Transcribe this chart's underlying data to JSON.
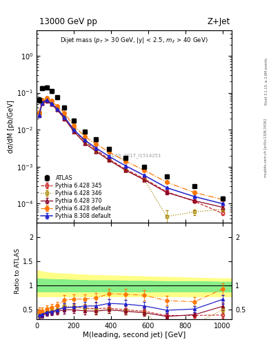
{
  "title_left": "13000 GeV pp",
  "title_right": "Z+Jet",
  "annotation": "Dijet mass ($p_T$ > 30 GeV, |y| < 2.5, $m_{ll}$ > 40 GeV)",
  "xlabel": "M(leading, second jet) [GeV]",
  "ylabel_main": "dσ/dM [pb/GeV]",
  "ylabel_ratio": "Ratio to ATLAS",
  "rivet_label": "Rivet 3.1.10, ≥ 2.6M events",
  "inspire_label": "mcplots.cern.ch [arXiv:1306.3436]",
  "atlas_id": "ATLAS_2017_I1514251",
  "xlim": [
    0,
    1050
  ],
  "ylim_main": [
    3e-05,
    5
  ],
  "ylim_ratio": [
    0.3,
    2.3
  ],
  "ratio_yticks": [
    0.5,
    1.0,
    1.5,
    2.0
  ],
  "atlas_x": [
    14,
    30,
    55,
    80,
    110,
    150,
    200,
    260,
    320,
    390,
    480,
    580,
    700,
    850,
    1000
  ],
  "atlas_y": [
    0.065,
    0.135,
    0.14,
    0.11,
    0.075,
    0.04,
    0.018,
    0.009,
    0.0055,
    0.003,
    0.0017,
    0.001,
    0.00055,
    0.0003,
    0.00014
  ],
  "atlas_yerr": [
    0.01,
    0.015,
    0.015,
    0.012,
    0.008,
    0.005,
    0.002,
    0.001,
    0.0006,
    0.0003,
    0.0002,
    0.0001,
    6e-05,
    3e-05,
    1.5e-05
  ],
  "py6_345_x": [
    14,
    30,
    55,
    80,
    110,
    150,
    200,
    260,
    320,
    390,
    480,
    580,
    700,
    850,
    1000
  ],
  "py6_345_y": [
    0.027,
    0.055,
    0.063,
    0.052,
    0.037,
    0.022,
    0.01,
    0.0048,
    0.0029,
    0.0016,
    0.00085,
    0.00047,
    0.00021,
    0.000115,
    5.5e-05
  ],
  "py6_345_yerr": [
    0.003,
    0.005,
    0.005,
    0.004,
    0.003,
    0.002,
    0.001,
    0.0004,
    0.0002,
    0.0001,
    7e-05,
    4e-05,
    2e-05,
    1e-05,
    5e-06
  ],
  "py6_346_x": [
    14,
    30,
    55,
    80,
    110,
    150,
    200,
    260,
    320,
    390,
    480,
    580,
    700,
    850,
    1000
  ],
  "py6_346_y": [
    0.028,
    0.057,
    0.065,
    0.053,
    0.038,
    0.023,
    0.01,
    0.0048,
    0.0027,
    0.0015,
    0.0008,
    0.00044,
    4.5e-05,
    6e-05,
    7e-05
  ],
  "py6_346_yerr": [
    0.003,
    0.005,
    0.005,
    0.004,
    0.003,
    0.002,
    0.001,
    0.0004,
    0.0002,
    0.0001,
    7e-05,
    4e-05,
    2e-05,
    1e-05,
    5e-06
  ],
  "py6_370_x": [
    14,
    30,
    55,
    80,
    110,
    150,
    200,
    260,
    320,
    390,
    480,
    580,
    700,
    850,
    1000
  ],
  "py6_370_y": [
    0.025,
    0.052,
    0.06,
    0.049,
    0.035,
    0.02,
    0.009,
    0.0043,
    0.0026,
    0.0015,
    0.0008,
    0.00044,
    0.0002,
    0.00012,
    8e-05
  ],
  "py6_370_yerr": [
    0.003,
    0.004,
    0.005,
    0.004,
    0.003,
    0.002,
    0.0008,
    0.0004,
    0.0002,
    0.0001,
    7e-05,
    4e-05,
    2e-05,
    1e-05,
    6e-06
  ],
  "py6_def_x": [
    14,
    30,
    55,
    80,
    110,
    150,
    200,
    260,
    320,
    390,
    480,
    580,
    700,
    850,
    1000
  ],
  "py6_def_y": [
    0.03,
    0.065,
    0.073,
    0.06,
    0.044,
    0.028,
    0.013,
    0.0065,
    0.0041,
    0.0025,
    0.0014,
    0.0008,
    0.00038,
    0.0002,
    0.00013
  ],
  "py6_def_yerr": [
    0.003,
    0.006,
    0.006,
    0.005,
    0.004,
    0.002,
    0.001,
    0.0006,
    0.0003,
    0.0002,
    0.0001,
    7e-05,
    3e-05,
    2e-05,
    1e-05
  ],
  "py8_def_x": [
    14,
    30,
    55,
    80,
    110,
    150,
    200,
    260,
    320,
    390,
    480,
    580,
    700,
    850,
    1000
  ],
  "py8_def_y": [
    0.025,
    0.055,
    0.063,
    0.051,
    0.037,
    0.022,
    0.01,
    0.0052,
    0.0032,
    0.0019,
    0.00105,
    0.00058,
    0.00027,
    0.000155,
    0.0001
  ],
  "py8_def_yerr": [
    0.003,
    0.005,
    0.005,
    0.004,
    0.003,
    0.002,
    0.001,
    0.0004,
    0.0003,
    0.0002,
    0.0001,
    5e-05,
    2e-05,
    1e-05,
    8e-06
  ],
  "green_band_x": [
    0,
    50,
    100,
    150,
    200,
    300,
    400,
    500,
    600,
    700,
    800,
    900,
    1000,
    1050
  ],
  "green_upper": [
    1.15,
    1.14,
    1.13,
    1.13,
    1.12,
    1.11,
    1.11,
    1.1,
    1.1,
    1.09,
    1.09,
    1.09,
    1.08,
    1.08
  ],
  "green_lower": [
    0.88,
    0.88,
    0.88,
    0.88,
    0.88,
    0.88,
    0.88,
    0.88,
    0.88,
    0.88,
    0.88,
    0.88,
    0.88,
    0.88
  ],
  "yellow_upper": [
    1.32,
    1.28,
    1.26,
    1.25,
    1.24,
    1.22,
    1.21,
    1.2,
    1.19,
    1.18,
    1.17,
    1.16,
    1.15,
    1.15
  ],
  "yellow_lower": [
    0.78,
    0.78,
    0.78,
    0.78,
    0.78,
    0.78,
    0.78,
    0.78,
    0.78,
    0.78,
    0.78,
    0.78,
    0.78,
    0.78
  ],
  "colors": {
    "atlas": "#000000",
    "py6_345": "#cc2222",
    "py6_346": "#aa8800",
    "py6_370": "#880022",
    "py6_def": "#ff7700",
    "py8_def": "#2222cc"
  }
}
